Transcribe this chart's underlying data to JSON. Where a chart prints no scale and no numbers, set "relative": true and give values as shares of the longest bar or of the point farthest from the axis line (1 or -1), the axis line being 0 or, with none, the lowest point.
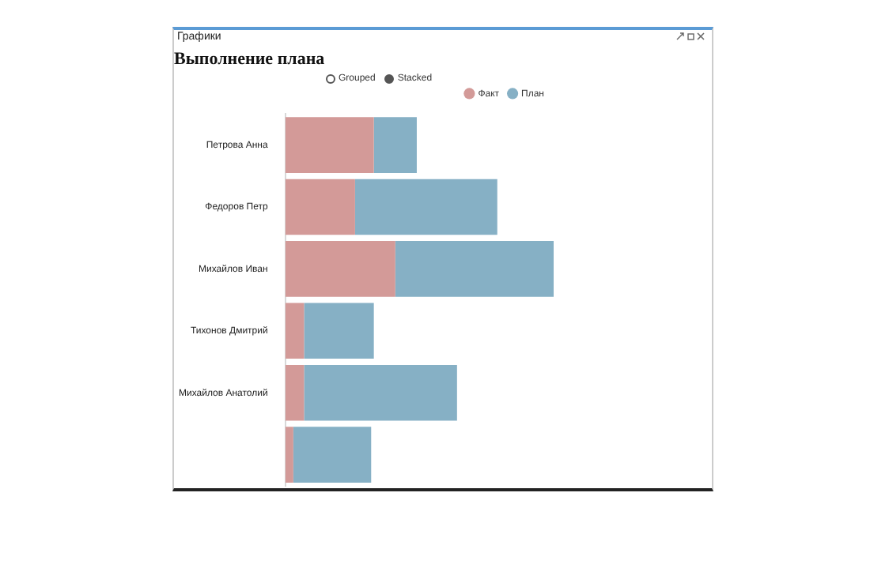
{
  "chart_data": {
    "type": "bar",
    "orientation": "horizontal",
    "stacked": true,
    "relative": true,
    "title": "Выполнение плана",
    "categories": [
      "Петрова Анна",
      "Федоров Петр",
      "Михайлов Иван",
      "Тихонов Дмитрий",
      "Михайлов Анатолий",
      null
    ],
    "series": [
      {
        "name": "Факт",
        "color": "#d39a98",
        "values": [
          0.33,
          0.26,
          0.41,
          0.07,
          0.07,
          0.03
        ]
      },
      {
        "name": "План",
        "color": "#86b0c5",
        "values": [
          0.16,
          0.53,
          0.59,
          0.26,
          0.57,
          0.29
        ]
      }
    ],
    "legend": "top right",
    "annotations": [
      "Графики",
      "Grouped",
      "Stacked"
    ]
  }
}
